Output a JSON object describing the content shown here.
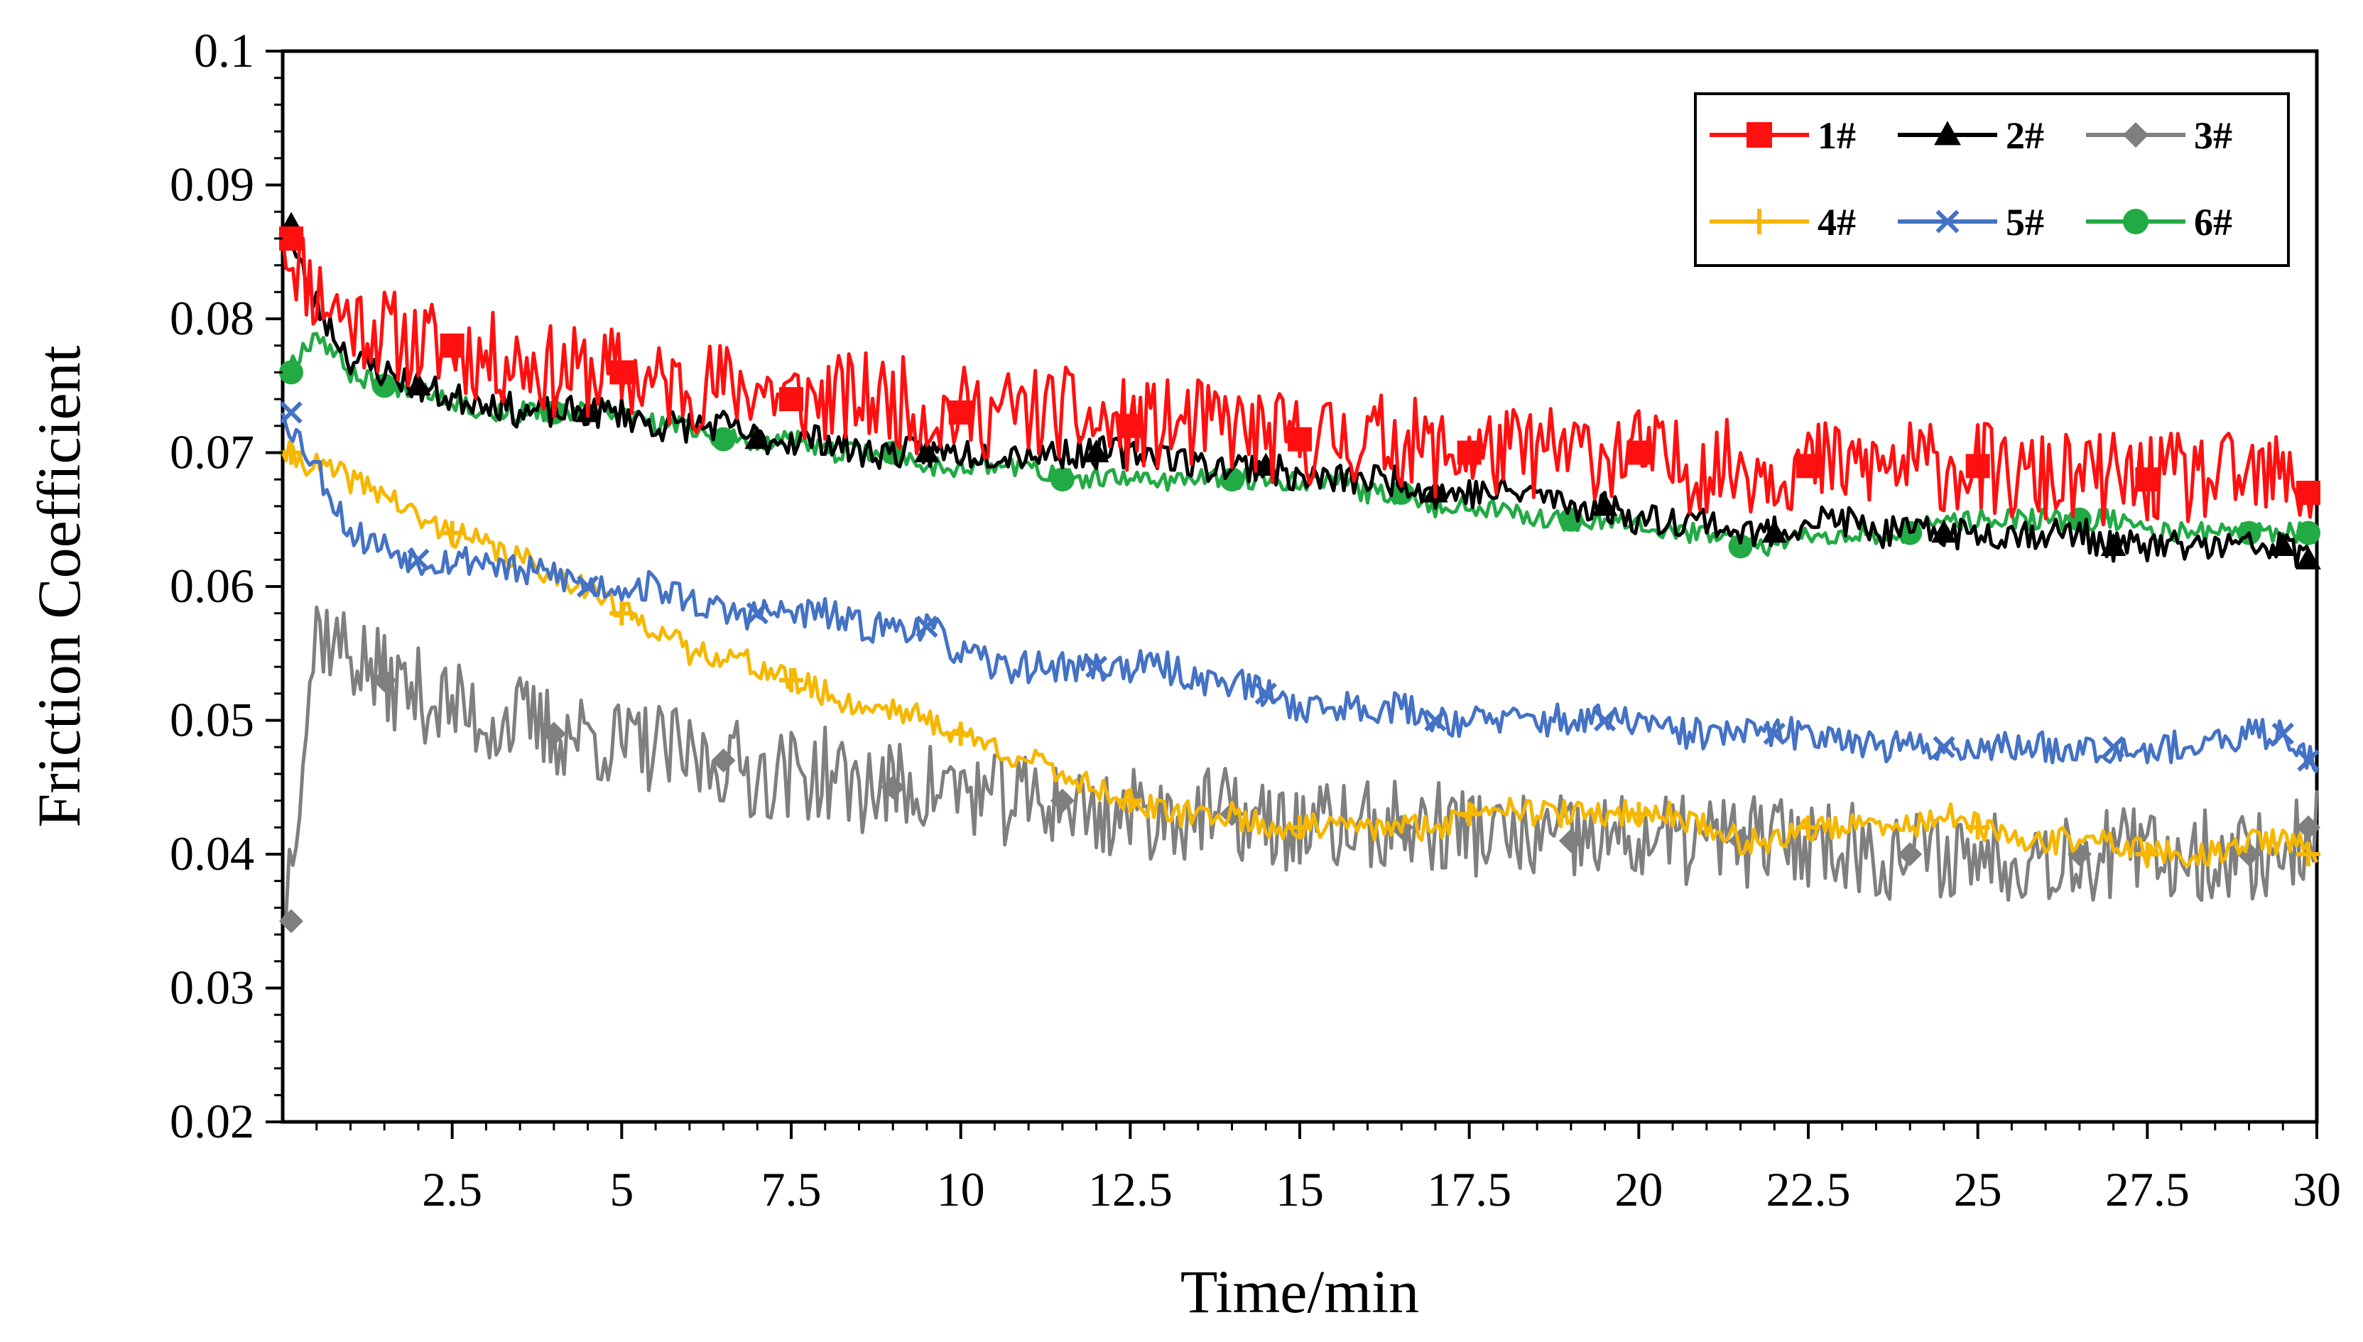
{
  "chart_data": {
    "type": "line",
    "title": "",
    "xlabel": "Time/min",
    "ylabel": "Friction Coefficient",
    "xlim": [
      0,
      30
    ],
    "ylim": [
      0.02,
      0.1
    ],
    "x_ticks": [
      "2.5",
      "5",
      "7.5",
      "10",
      "12.5",
      "15",
      "17.5",
      "20",
      "22.5",
      "25",
      "27.5",
      "30"
    ],
    "y_ticks": [
      "0.02",
      "0.03",
      "0.04",
      "0.05",
      "0.06",
      "0.07",
      "0.08",
      "0.09",
      "0.1"
    ],
    "grid": false,
    "legend_position": "top-right",
    "x": [
      0,
      0.5,
      1,
      1.5,
      2,
      2.5,
      3,
      3.5,
      4,
      4.5,
      5,
      5.5,
      6,
      6.5,
      7,
      7.5,
      8,
      8.5,
      9,
      9.5,
      10,
      10.5,
      11,
      11.5,
      12,
      12.5,
      13,
      13.5,
      14,
      14.5,
      15,
      15.5,
      16,
      16.5,
      17,
      17.5,
      18,
      18.5,
      19,
      19.5,
      20,
      20.5,
      21,
      21.5,
      22,
      22.5,
      23,
      23.5,
      24,
      24.5,
      25,
      25.5,
      26,
      26.5,
      27,
      27.5,
      28,
      28.5,
      29,
      29.5,
      30
    ],
    "series": [
      {
        "name": "1#",
        "color": "#ff1010",
        "marker": "square",
        "noise": 0.0035,
        "values": [
          0.086,
          0.082,
          0.08,
          0.079,
          0.078,
          0.078,
          0.077,
          0.077,
          0.076,
          0.076,
          0.076,
          0.075,
          0.075,
          0.075,
          0.075,
          0.074,
          0.074,
          0.074,
          0.074,
          0.073,
          0.073,
          0.073,
          0.073,
          0.073,
          0.072,
          0.072,
          0.072,
          0.072,
          0.072,
          0.071,
          0.071,
          0.071,
          0.071,
          0.071,
          0.07,
          0.07,
          0.07,
          0.07,
          0.07,
          0.07,
          0.07,
          0.069,
          0.069,
          0.069,
          0.069,
          0.069,
          0.069,
          0.069,
          0.069,
          0.069,
          0.069,
          0.068,
          0.068,
          0.068,
          0.068,
          0.068,
          0.068,
          0.068,
          0.068,
          0.068,
          0.067
        ]
      },
      {
        "name": "2#",
        "color": "#000000",
        "marker": "triangle",
        "noise": 0.0012,
        "values": [
          0.087,
          0.081,
          0.077,
          0.076,
          0.075,
          0.074,
          0.074,
          0.073,
          0.073,
          0.073,
          0.073,
          0.072,
          0.072,
          0.072,
          0.071,
          0.071,
          0.071,
          0.07,
          0.07,
          0.07,
          0.07,
          0.07,
          0.07,
          0.07,
          0.07,
          0.07,
          0.07,
          0.069,
          0.069,
          0.069,
          0.068,
          0.068,
          0.068,
          0.068,
          0.067,
          0.067,
          0.067,
          0.067,
          0.066,
          0.066,
          0.065,
          0.065,
          0.065,
          0.064,
          0.064,
          0.065,
          0.065,
          0.064,
          0.064,
          0.064,
          0.064,
          0.064,
          0.064,
          0.064,
          0.063,
          0.063,
          0.063,
          0.063,
          0.063,
          0.063,
          0.062
        ]
      },
      {
        "name": "3#",
        "color": "#7f7f7f",
        "marker": "diamond",
        "noise": 0.0035,
        "values": [
          0.035,
          0.057,
          0.055,
          0.053,
          0.052,
          0.051,
          0.05,
          0.05,
          0.049,
          0.049,
          0.048,
          0.048,
          0.047,
          0.047,
          0.046,
          0.046,
          0.046,
          0.045,
          0.045,
          0.045,
          0.045,
          0.044,
          0.044,
          0.044,
          0.043,
          0.043,
          0.043,
          0.043,
          0.043,
          0.042,
          0.042,
          0.042,
          0.042,
          0.042,
          0.042,
          0.042,
          0.041,
          0.041,
          0.041,
          0.041,
          0.041,
          0.041,
          0.041,
          0.041,
          0.041,
          0.041,
          0.041,
          0.04,
          0.04,
          0.04,
          0.04,
          0.04,
          0.04,
          0.04,
          0.04,
          0.04,
          0.04,
          0.04,
          0.04,
          0.04,
          0.042
        ]
      },
      {
        "name": "4#",
        "color": "#f5b700",
        "marker": "plus",
        "noise": 0.001,
        "values": [
          0.07,
          0.069,
          0.068,
          0.067,
          0.065,
          0.064,
          0.063,
          0.062,
          0.061,
          0.06,
          0.058,
          0.057,
          0.055,
          0.055,
          0.054,
          0.053,
          0.052,
          0.051,
          0.051,
          0.05,
          0.049,
          0.048,
          0.047,
          0.046,
          0.045,
          0.044,
          0.043,
          0.043,
          0.043,
          0.042,
          0.042,
          0.042,
          0.042,
          0.042,
          0.042,
          0.043,
          0.044,
          0.043,
          0.043,
          0.043,
          0.043,
          0.043,
          0.042,
          0.041,
          0.041,
          0.042,
          0.042,
          0.042,
          0.042,
          0.043,
          0.042,
          0.041,
          0.041,
          0.041,
          0.041,
          0.04,
          0.04,
          0.04,
          0.041,
          0.041,
          0.04
        ]
      },
      {
        "name": "5#",
        "color": "#4472c4",
        "marker": "x",
        "noise": 0.0012,
        "values": [
          0.073,
          0.069,
          0.064,
          0.063,
          0.062,
          0.062,
          0.062,
          0.061,
          0.061,
          0.06,
          0.06,
          0.06,
          0.059,
          0.058,
          0.058,
          0.058,
          0.058,
          0.057,
          0.057,
          0.057,
          0.055,
          0.054,
          0.054,
          0.054,
          0.054,
          0.054,
          0.054,
          0.053,
          0.053,
          0.052,
          0.051,
          0.051,
          0.051,
          0.051,
          0.05,
          0.05,
          0.05,
          0.05,
          0.05,
          0.05,
          0.05,
          0.049,
          0.049,
          0.049,
          0.049,
          0.049,
          0.049,
          0.048,
          0.048,
          0.048,
          0.048,
          0.048,
          0.048,
          0.048,
          0.048,
          0.048,
          0.048,
          0.048,
          0.049,
          0.049,
          0.047
        ]
      },
      {
        "name": "6#",
        "color": "#22aa44",
        "marker": "circle",
        "noise": 0.0008,
        "values": [
          0.076,
          0.079,
          0.076,
          0.075,
          0.075,
          0.074,
          0.073,
          0.073,
          0.073,
          0.073,
          0.073,
          0.072,
          0.072,
          0.071,
          0.071,
          0.071,
          0.07,
          0.07,
          0.07,
          0.069,
          0.069,
          0.069,
          0.069,
          0.068,
          0.068,
          0.068,
          0.068,
          0.068,
          0.068,
          0.068,
          0.068,
          0.068,
          0.067,
          0.067,
          0.066,
          0.066,
          0.066,
          0.065,
          0.065,
          0.065,
          0.065,
          0.064,
          0.064,
          0.063,
          0.063,
          0.064,
          0.064,
          0.064,
          0.064,
          0.065,
          0.065,
          0.065,
          0.065,
          0.065,
          0.065,
          0.064,
          0.064,
          0.064,
          0.064,
          0.064,
          0.064
        ]
      }
    ]
  }
}
